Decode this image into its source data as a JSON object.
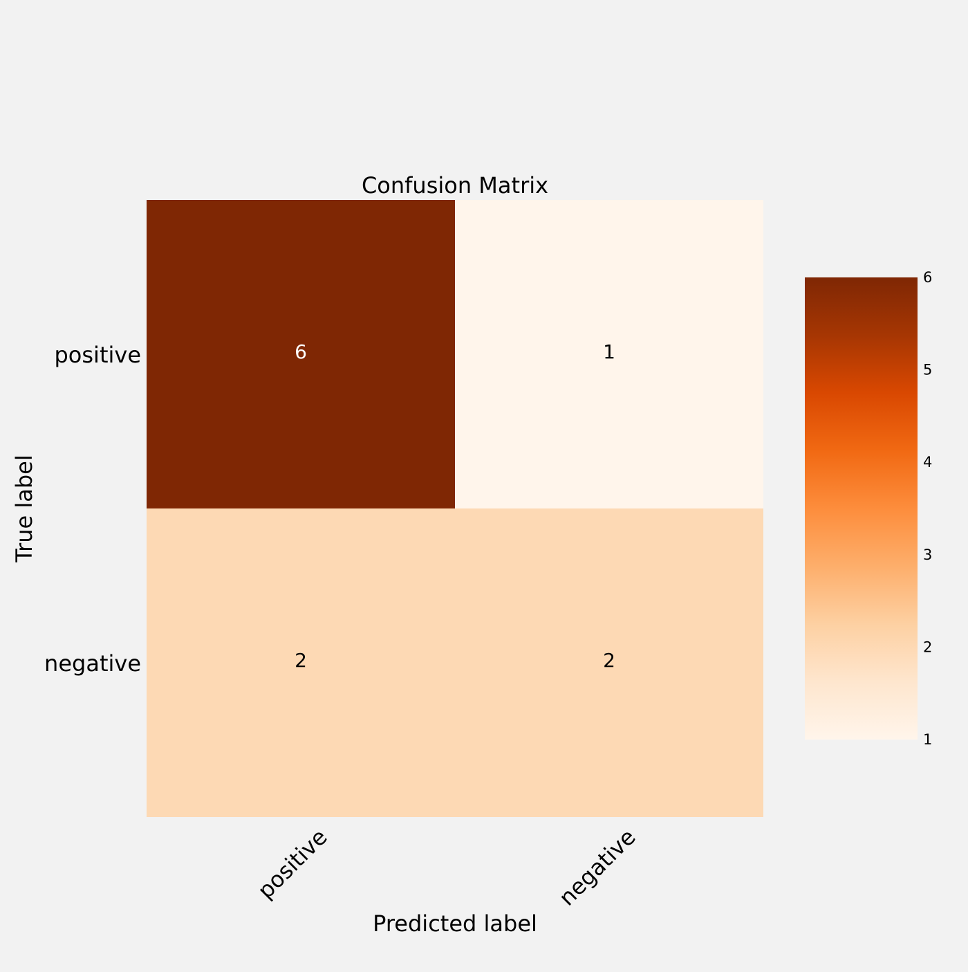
{
  "chart_data": {
    "type": "heatmap",
    "title": "Confusion Matrix",
    "xlabel": "Predicted label",
    "ylabel": "True label",
    "x_categories": [
      "positive",
      "negative"
    ],
    "y_categories": [
      "positive",
      "negative"
    ],
    "values": [
      [
        6,
        1
      ],
      [
        2,
        2
      ]
    ],
    "colorscale": "Oranges",
    "colorbar": {
      "min": 1,
      "max": 6,
      "ticks": [
        "1",
        "2",
        "3",
        "4",
        "5",
        "6"
      ]
    },
    "grid": false
  }
}
